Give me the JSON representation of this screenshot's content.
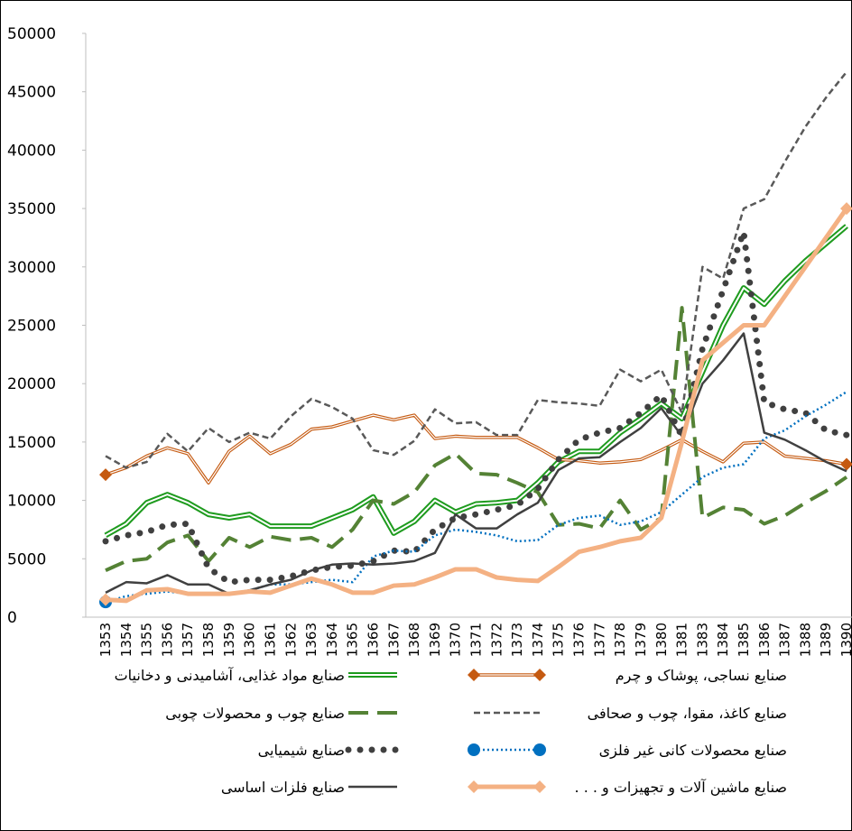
{
  "chart_data": {
    "type": "line",
    "categories": [
      "1353",
      "1354",
      "1355",
      "1356",
      "1357",
      "1358",
      "1359",
      "1360",
      "1361",
      "1362",
      "1363",
      "1364",
      "1365",
      "1366",
      "1367",
      "1368",
      "1369",
      "1370",
      "1371",
      "1372",
      "1373",
      "1374",
      "1375",
      "1376",
      "1377",
      "1378",
      "1379",
      "1380",
      "1381",
      "1383",
      "1384",
      "1385",
      "1386",
      "1387",
      "1388",
      "1389",
      "1390"
    ],
    "ylim": [
      0,
      50000
    ],
    "yticks": [
      0,
      5000,
      10000,
      15000,
      20000,
      25000,
      30000,
      35000,
      40000,
      45000,
      50000
    ],
    "series": [
      {
        "name": "صنایع مواد غذایی، آشامیدنی و دخانیات",
        "color": "#1e9b1e",
        "style": "double",
        "values": [
          7000,
          8000,
          9800,
          10500,
          9800,
          8800,
          8500,
          8800,
          7800,
          7800,
          7800,
          8500,
          9200,
          10300,
          7200,
          8200,
          10000,
          9000,
          9700,
          9800,
          10000,
          11500,
          13300,
          14200,
          14200,
          15800,
          17000,
          18300,
          17000,
          21000,
          25000,
          28200,
          26800,
          28800,
          30500,
          32000,
          33500
        ]
      },
      {
        "name": "صنایع نساجی، پوشاک و چرم",
        "color": "#c55a11",
        "style": "double-thin",
        "marker": "diamond",
        "values": [
          12200,
          12800,
          13800,
          14500,
          14000,
          11500,
          14200,
          15500,
          14000,
          14800,
          16100,
          16300,
          16800,
          17300,
          16900,
          17300,
          15300,
          15500,
          15400,
          15400,
          15400,
          14500,
          13500,
          13400,
          13200,
          13300,
          13500,
          14300,
          15200,
          14200,
          13300,
          14900,
          15000,
          13800,
          13600,
          13400,
          13100
        ]
      },
      {
        "name": "صنایع چوب و محصولات چوبی",
        "color": "#548235",
        "style": "long-dash",
        "values": [
          4000,
          4800,
          5000,
          6400,
          7000,
          4800,
          6800,
          6000,
          6900,
          6600,
          6800,
          6000,
          7500,
          10000,
          9700,
          10700,
          13000,
          14000,
          12300,
          12200,
          11500,
          10700,
          7900,
          8000,
          7600,
          10000,
          7500,
          8500,
          26500,
          8500,
          9400,
          9200,
          8000,
          8700,
          9800,
          10800,
          12000
        ]
      },
      {
        "name": "صنایع کاغذ، مقوا، چوب و صحافی",
        "color": "#595959",
        "style": "dashed",
        "values": [
          13800,
          12800,
          13300,
          15700,
          14200,
          16200,
          15000,
          15800,
          15300,
          17200,
          18700,
          18000,
          17000,
          14300,
          13900,
          15100,
          17800,
          16600,
          16700,
          15600,
          15600,
          18600,
          18400,
          18300,
          18100,
          21200,
          20200,
          21200,
          17500,
          30000,
          29000,
          35000,
          35800,
          39000,
          42000,
          44500,
          46700
        ]
      },
      {
        "name": "صنایع شیمیایی",
        "color": "#404040",
        "style": "dots",
        "values": [
          6500,
          7000,
          7300,
          7900,
          8000,
          4200,
          3000,
          3200,
          3200,
          3500,
          4000,
          4300,
          4400,
          4800,
          5700,
          5600,
          7500,
          8500,
          8800,
          9200,
          9600,
          11000,
          13500,
          15200,
          15800,
          16200,
          17500,
          19000,
          15500,
          23000,
          28000,
          33000,
          18400,
          17800,
          17500,
          16000,
          15600
        ]
      },
      {
        "name": "صنایع محصولات کانی غیر فلزی",
        "color": "#0070c0",
        "style": "dotted",
        "marker": "circle",
        "values": [
          1300,
          1800,
          2000,
          2200,
          2000,
          2000,
          2000,
          2300,
          2800,
          2800,
          3000,
          3200,
          3000,
          5200,
          5700,
          5600,
          7000,
          7500,
          7300,
          7000,
          6500,
          6600,
          7900,
          8500,
          8700,
          7900,
          8200,
          9000,
          10500,
          12000,
          12800,
          13100,
          15300,
          16000,
          17200,
          18200,
          19300
        ]
      },
      {
        "name": "صنایع فلزات اساسی",
        "color": "#404040",
        "style": "solid",
        "values": [
          2100,
          3000,
          2900,
          3600,
          2800,
          2800,
          2000,
          2300,
          2800,
          3200,
          4000,
          4500,
          4600,
          4500,
          4600,
          4800,
          5500,
          8800,
          7600,
          7600,
          8800,
          9800,
          12600,
          13600,
          13700,
          15000,
          16200,
          17900,
          15500,
          20000,
          22000,
          24300,
          15800,
          15200,
          14300,
          13300,
          12500
        ]
      },
      {
        "name": "صنایع ماشین آلات و تجهیزات و . . .",
        "color": "#f4b183",
        "style": "thick",
        "marker": "diamond",
        "values": [
          1500,
          1400,
          2300,
          2400,
          2000,
          2000,
          2000,
          2200,
          2100,
          2700,
          3300,
          2800,
          2100,
          2100,
          2700,
          2800,
          3400,
          4100,
          4100,
          3400,
          3200,
          3100,
          4300,
          5600,
          6000,
          6500,
          6800,
          8500,
          15000,
          22000,
          23500,
          25000,
          25000,
          27500,
          30000,
          32500,
          35000
        ]
      }
    ]
  }
}
